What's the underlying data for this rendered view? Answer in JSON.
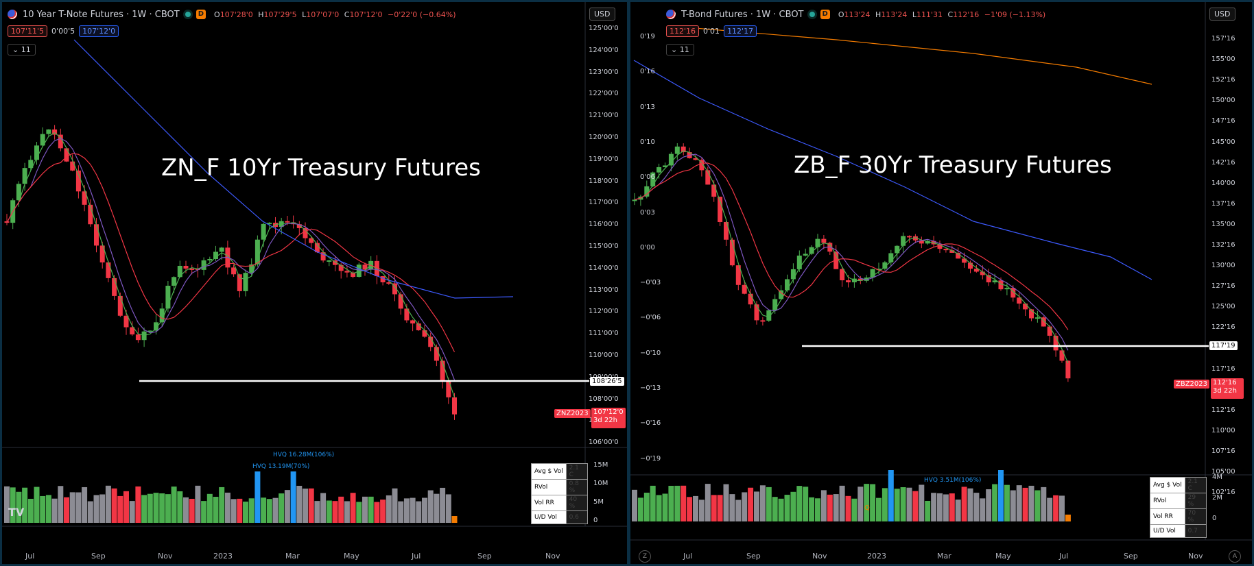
{
  "colors": {
    "up": "#4caf50",
    "down": "#f23645",
    "volume_neutral": "#8c8c94",
    "hvq": "#2196f3",
    "ma_green": "#4caf50",
    "ma_purple": "#7e57c2",
    "ma_red": "#f23645",
    "ma_blue": "#3d5afe",
    "ma_orange": "#f57c00",
    "support_line": "#ffffff"
  },
  "left": {
    "header": {
      "title": "10 Year T-Note Futures · 1W · CBOT",
      "badge": "D",
      "o_label": "O",
      "o": "107'28'0",
      "h_label": "H",
      "h": "107'29'5",
      "l_label": "L",
      "l": "107'07'0",
      "c_label": "C",
      "c": "107'12'0",
      "change": "−0'22'0 (−0.64%)"
    },
    "price_boxes": {
      "sell": "107'11'5",
      "spread": "0'00'5",
      "buy": "107'12'0"
    },
    "indicator_count": "11",
    "currency": "USD",
    "overlay_title": "ZN_F 10Yr Treasury Futures",
    "price_axis": [
      "125'00'0",
      "124'00'0",
      "123'00'0",
      "122'00'0",
      "121'00'0",
      "120'00'0",
      "119'00'0",
      "118'00'0",
      "117'00'0",
      "116'00'0",
      "115'00'0",
      "114'00'0",
      "113'00'0",
      "112'00'0",
      "111'00'0",
      "110'00'0",
      "109'00'0",
      "108'00'0",
      "107'00'0",
      "106'00'0"
    ],
    "support_tag": "108'26'5",
    "symbol_tag": "ZNZ2023",
    "last_price": "107'12'0",
    "countdown": "3d 22h",
    "volume_axis": [
      "15M",
      "10M",
      "5M",
      "0"
    ],
    "hvq_labels": [
      "HVQ 16.28M(106%)",
      "HVQ 13.19M(70%)"
    ],
    "legend_rows": [
      "Avg $ Vol",
      "RVol",
      "Vol RR",
      "U/D Vol"
    ],
    "legend_vals": [
      "2.1 C",
      "0.8 %",
      "40 %",
      "0.6"
    ],
    "time_axis": [
      "Jul",
      "Sep",
      "Nov",
      "2023",
      "Mar",
      "May",
      "Jul",
      "Sep",
      "Nov"
    ],
    "logo": "TV"
  },
  "right": {
    "header": {
      "title": "T-Bond Futures · 1W · CBOT",
      "badge": "D",
      "o_label": "O",
      "o": "113'24",
      "h_label": "H",
      "h": "113'24",
      "l_label": "L",
      "l": "111'31",
      "c_label": "C",
      "c": "112'16",
      "change": "−1'09 (−1.13%)"
    },
    "price_boxes": {
      "sell": "112'16",
      "spread": "0'01",
      "buy": "112'17"
    },
    "indicator_count": "11",
    "currency": "USD",
    "overlay_title": "ZB_F 30Yr Treasury Futures",
    "left_axis": [
      "0'19",
      "0'16",
      "0'13",
      "0'10",
      "0'06",
      "0'03",
      "0'00",
      "−0'03",
      "−0'06",
      "−0'10",
      "−0'13",
      "−0'16",
      "−0'19"
    ],
    "price_axis": [
      "157'16",
      "155'00",
      "152'16",
      "150'00",
      "147'16",
      "145'00",
      "142'16",
      "140'00",
      "137'16",
      "135'00",
      "132'16",
      "130'00",
      "127'16",
      "125'00",
      "122'16",
      "120'00",
      "117'16",
      "115'00",
      "112'16",
      "110'00",
      "107'16",
      "105'00",
      "102'16"
    ],
    "support_tag": "117'19",
    "symbol_tag": "ZBZ2023",
    "last_price": "112'16",
    "countdown": "3d 22h",
    "volume_axis": [
      "4M",
      "2M",
      "0"
    ],
    "hvq_labels": [
      "HVQ 3.51M(106%)"
    ],
    "legend_rows": [
      "Avg $ Vol",
      "RVol",
      "Vol RR",
      "U/D Vol"
    ],
    "legend_vals": [
      "2.1 C",
      "29 %",
      "70 %",
      "0.7"
    ],
    "time_axis": [
      "Jul",
      "Sep",
      "Nov",
      "2023",
      "Mar",
      "May",
      "Jul",
      "Sep",
      "Nov"
    ],
    "corner_left": "Z",
    "corner_right": "A",
    "volume_marker": "Q"
  }
}
